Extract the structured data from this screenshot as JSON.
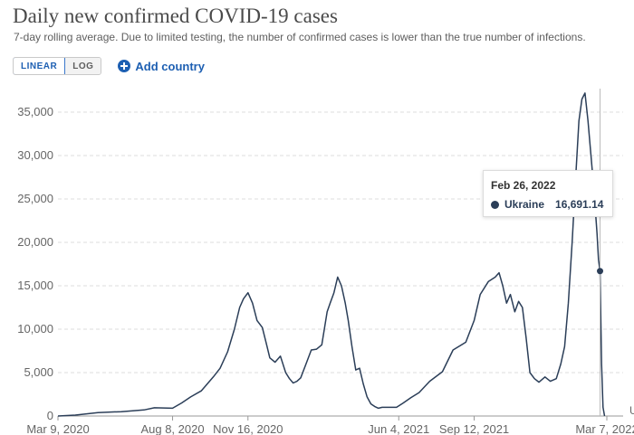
{
  "header": {
    "title": "Daily new confirmed COVID-19 cases",
    "subtitle": "7-day rolling average. Due to limited testing, the number of confirmed cases is lower than the true number of infections."
  },
  "controls": {
    "linear_label": "LINEAR",
    "log_label": "LOG",
    "add_country_label": "Add country",
    "accent": "#1d5fb2",
    "add_icon": "plus-circle-icon"
  },
  "tooltip": {
    "date": "Feb 26, 2022",
    "country": "Ukraine",
    "value": "16,691.14"
  },
  "edge_label": "U",
  "chart_data": {
    "type": "line",
    "title": "Daily new confirmed COVID-19 cases",
    "subtitle": "7-day rolling average. Due to limited testing, the number of confirmed cases is lower than the true number of infections.",
    "xlabel": "",
    "ylabel": "",
    "ylim": [
      0,
      37500
    ],
    "grid": "horizontal dashed",
    "x_ticks": [
      "Mar 9, 2020",
      "Aug 8, 2020",
      "Nov 16, 2020",
      "Jun 4, 2021",
      "Sep 12, 2021",
      "Mar 7, 2022"
    ],
    "y_ticks": [
      "0",
      "5,000",
      "10,000",
      "15,000",
      "20,000",
      "25,000",
      "30,000",
      "35,000"
    ],
    "y_tick_values": [
      0,
      5000,
      10000,
      15000,
      20000,
      25000,
      30000,
      35000
    ],
    "line_color": "#2b3e58",
    "series": [
      {
        "name": "Ukraine",
        "x": [
          "2020-03-09",
          "2020-04-01",
          "2020-05-01",
          "2020-06-01",
          "2020-07-01",
          "2020-07-15",
          "2020-08-08",
          "2020-08-20",
          "2020-09-01",
          "2020-09-15",
          "2020-10-01",
          "2020-10-10",
          "2020-10-20",
          "2020-10-29",
          "2020-11-05",
          "2020-11-10",
          "2020-11-16",
          "2020-11-22",
          "2020-11-28",
          "2020-12-05",
          "2020-12-10",
          "2020-12-15",
          "2020-12-22",
          "2020-12-29",
          "2021-01-05",
          "2021-01-10",
          "2021-01-15",
          "2021-01-20",
          "2021-01-25",
          "2021-02-01",
          "2021-02-08",
          "2021-02-15",
          "2021-02-22",
          "2021-03-01",
          "2021-03-05",
          "2021-03-10",
          "2021-03-15",
          "2021-03-20",
          "2021-03-25",
          "2021-03-29",
          "2021-04-03",
          "2021-04-08",
          "2021-04-13",
          "2021-04-18",
          "2021-04-23",
          "2021-04-28",
          "2021-05-03",
          "2021-05-08",
          "2021-05-13",
          "2021-05-20",
          "2021-06-01",
          "2021-06-10",
          "2021-06-20",
          "2021-07-01",
          "2021-07-15",
          "2021-08-01",
          "2021-08-15",
          "2021-09-01",
          "2021-09-12",
          "2021-09-20",
          "2021-10-01",
          "2021-10-10",
          "2021-10-15",
          "2021-10-20",
          "2021-10-25",
          "2021-10-30",
          "2021-11-05",
          "2021-11-10",
          "2021-11-15",
          "2021-11-20",
          "2021-11-25",
          "2021-12-01",
          "2021-12-07",
          "2021-12-15",
          "2021-12-22",
          "2021-12-30",
          "2022-01-05",
          "2022-01-10",
          "2022-01-15",
          "2022-01-20",
          "2022-01-25",
          "2022-01-29",
          "2022-02-02",
          "2022-02-06",
          "2022-02-10",
          "2022-02-14",
          "2022-02-18",
          "2022-02-22",
          "2022-02-24",
          "2022-02-26",
          "2022-02-28",
          "2022-03-02",
          "2022-03-04"
        ],
        "y": [
          0,
          100,
          400,
          500,
          700,
          950,
          900,
          1500,
          2200,
          2900,
          4500,
          5500,
          7400,
          10000,
          12500,
          13500,
          14200,
          13000,
          11000,
          10200,
          8500,
          6700,
          6200,
          6900,
          5000,
          4300,
          3800,
          4000,
          4400,
          6000,
          7600,
          7700,
          8200,
          12000,
          13000,
          14200,
          16000,
          15000,
          13000,
          11000,
          8000,
          5300,
          5500,
          3700,
          2200,
          1400,
          1100,
          900,
          1000,
          1000,
          1000,
          1500,
          2100,
          2700,
          4000,
          5100,
          7600,
          8500,
          11000,
          14000,
          15500,
          16000,
          16500,
          15000,
          13000,
          14000,
          12000,
          13200,
          12500,
          9000,
          5000,
          4300,
          3900,
          4500,
          4000,
          4300,
          6000,
          8000,
          13000,
          20000,
          28000,
          34000,
          36500,
          37200,
          34000,
          30000,
          26000,
          21000,
          18000,
          16691.14,
          6000,
          1000,
          0
        ]
      }
    ],
    "hover": {
      "date": "Feb 26, 2022",
      "value": 16691.14
    }
  }
}
